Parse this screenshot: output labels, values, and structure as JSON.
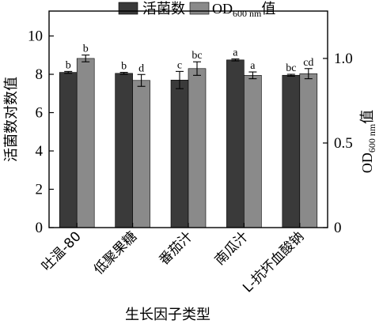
{
  "chart_data": {
    "type": "bar",
    "categories": [
      "吐温-80",
      "低聚果糖",
      "番茄汁",
      "南瓜汁",
      "L-抗坏血酸钠"
    ],
    "series": [
      {
        "name": "活菌数",
        "axis": "left",
        "color": "#3a3a3a",
        "values": [
          8.1,
          8.05,
          7.7,
          8.75,
          7.95
        ],
        "errors": [
          0.05,
          0.05,
          0.45,
          0.05,
          0.05
        ],
        "labels": [
          "b",
          "b",
          "c",
          "a",
          "bc"
        ]
      },
      {
        "name": "OD600 nm值",
        "axis": "right",
        "color": "#8a8a8a",
        "values": [
          1.0,
          0.87,
          0.94,
          0.9,
          0.91
        ],
        "errors": [
          0.02,
          0.035,
          0.04,
          0.02,
          0.03
        ],
        "labels": [
          "b",
          "d",
          "bc",
          "a",
          "cd"
        ]
      }
    ],
    "ylabel_left": "活菌数对数值",
    "ylabel_right_main": "OD",
    "ylabel_right_sub": "600 nm",
    "ylabel_right_suffix": "值",
    "xlabel": "生长因子类型",
    "ylim_left": [
      0,
      11.3
    ],
    "ylim_right": [
      0,
      1.28
    ],
    "yticks_left": [
      "0",
      "2",
      "4",
      "6",
      "8",
      "10"
    ],
    "yticks_left_values": [
      0,
      2,
      4,
      6,
      8,
      10
    ],
    "yticks_right": [
      "0",
      "0.5",
      "1.0"
    ],
    "yticks_right_values": [
      0,
      0.5,
      1.0
    ],
    "legend": {
      "position": "top-center",
      "items": [
        {
          "text": "活菌数",
          "color": "#3a3a3a"
        },
        {
          "text_main": "OD",
          "text_sub": "600 nm",
          "text_suffix": "值",
          "color": "#8a8a8a"
        }
      ]
    },
    "grid": false
  }
}
